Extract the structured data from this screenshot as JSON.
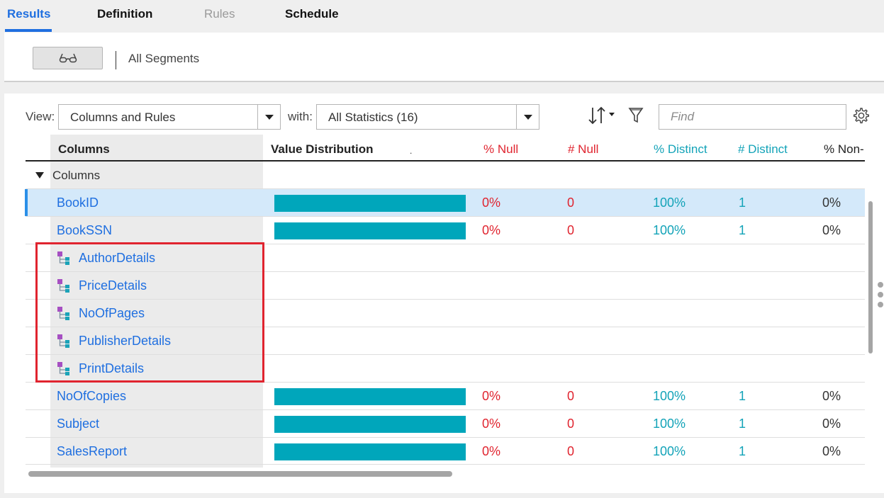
{
  "tabs": [
    {
      "label": "Results",
      "state": "active"
    },
    {
      "label": "Definition",
      "state": "normal"
    },
    {
      "label": "Rules",
      "state": "disabled"
    },
    {
      "label": "Schedule",
      "state": "normal"
    }
  ],
  "segments": {
    "view_icon": "glasses-icon",
    "label": "All Segments"
  },
  "toolbar": {
    "view_label": "View:",
    "view_value": "Columns and Rules",
    "with_label": "with:",
    "stats_value": "All Statistics (16)",
    "sort_icon": "sort-icon",
    "filter_icon": "filter-icon",
    "find_placeholder": "Find",
    "settings_icon": "gear-icon"
  },
  "grid": {
    "headers": {
      "columns": "Columns",
      "value_distribution": "Value Distribution",
      "dot": ".",
      "pct_null": "% Null",
      "num_null": "# Null",
      "pct_distinct": "% Distinct",
      "num_distinct": "# Distinct",
      "pct_non": "% Non-"
    },
    "group_label": "Columns",
    "rows": [
      {
        "name": "BookID",
        "type": "column",
        "value_distribution": 1.0,
        "pct_null": "0%",
        "num_null": "0",
        "pct_distinct": "100%",
        "num_distinct": "1",
        "pct_non": "0%",
        "selected": true
      },
      {
        "name": "BookSSN",
        "type": "column",
        "value_distribution": 1.0,
        "pct_null": "0%",
        "num_null": "0",
        "pct_distinct": "100%",
        "num_distinct": "1",
        "pct_non": "0%"
      },
      {
        "name": "AuthorDetails",
        "type": "rule",
        "icon": "hierarchy-icon"
      },
      {
        "name": "PriceDetails",
        "type": "rule",
        "icon": "hierarchy-icon"
      },
      {
        "name": "NoOfPages",
        "type": "rule",
        "icon": "hierarchy-icon"
      },
      {
        "name": "PublisherDetails",
        "type": "rule",
        "icon": "hierarchy-icon"
      },
      {
        "name": "PrintDetails",
        "type": "rule",
        "icon": "hierarchy-icon"
      },
      {
        "name": "NoOfCopies",
        "type": "column",
        "value_distribution": 1.0,
        "pct_null": "0%",
        "num_null": "0",
        "pct_distinct": "100%",
        "num_distinct": "1",
        "pct_non": "0%"
      },
      {
        "name": "Subject",
        "type": "column",
        "value_distribution": 1.0,
        "pct_null": "0%",
        "num_null": "0",
        "pct_distinct": "100%",
        "num_distinct": "1",
        "pct_non": "0%"
      },
      {
        "name": "SalesReport",
        "type": "column",
        "value_distribution": 1.0,
        "pct_null": "0%",
        "num_null": "0",
        "pct_distinct": "100%",
        "num_distinct": "1",
        "pct_non": "0%"
      }
    ]
  },
  "colors": {
    "accent_blue": "#1f6fe0",
    "null_red": "#e0242f",
    "distinct_teal": "#13a3b8",
    "bar_fill": "#00a6bb",
    "highlight_red": "#e0242f"
  }
}
